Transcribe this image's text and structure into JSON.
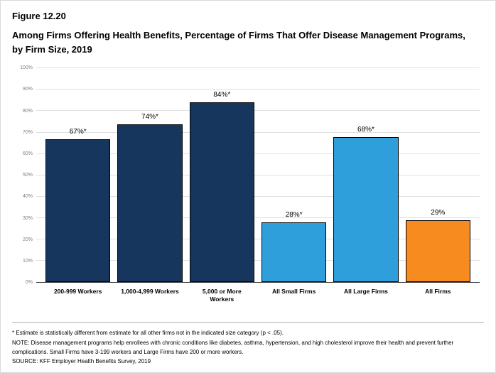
{
  "figure": {
    "number": "Figure 12.20",
    "title": "Among Firms Offering Health Benefits, Percentage of Firms That Offer Disease Management Programs, by Firm Size, 2019"
  },
  "chart_data": {
    "type": "bar",
    "title": "Among Firms Offering Health Benefits, Percentage of Firms That Offer Disease Management Programs, by Firm Size, 2019",
    "categories": [
      "200-999 Workers",
      "1,000-4,999 Workers",
      "5,000 or More Workers",
      "All Small Firms",
      "All Large Firms",
      "All Firms"
    ],
    "values": [
      67,
      74,
      84,
      28,
      68,
      29
    ],
    "value_labels": [
      "67%*",
      "74%*",
      "84%*",
      "28%*",
      "68%*",
      "29%"
    ],
    "bar_colors": [
      "#17365d",
      "#17365d",
      "#17365d",
      "#2e9fda",
      "#2e9fda",
      "#f78b1f"
    ],
    "xlabel": "",
    "ylabel": "",
    "ylim": [
      0,
      100
    ],
    "ytick_labels": [
      "0%",
      "10%",
      "20%",
      "30%",
      "40%",
      "50%",
      "60%",
      "70%",
      "80%",
      "90%",
      "100%"
    ],
    "grid": true,
    "legend": "none"
  },
  "footnotes": {
    "asterisk": "* Estimate is statistically different from estimate for all other firms not in the indicated size category (p < .05).",
    "note": "NOTE: Disease management programs help enrollees with chronic conditions like diabetes, asthma, hypertension, and high cholesterol improve their health and prevent further complications. Small Firms have 3-199 workers and Large Firms have 200 or more workers.",
    "source": "SOURCE: KFF Employer Health Benefits Survey, 2019"
  }
}
